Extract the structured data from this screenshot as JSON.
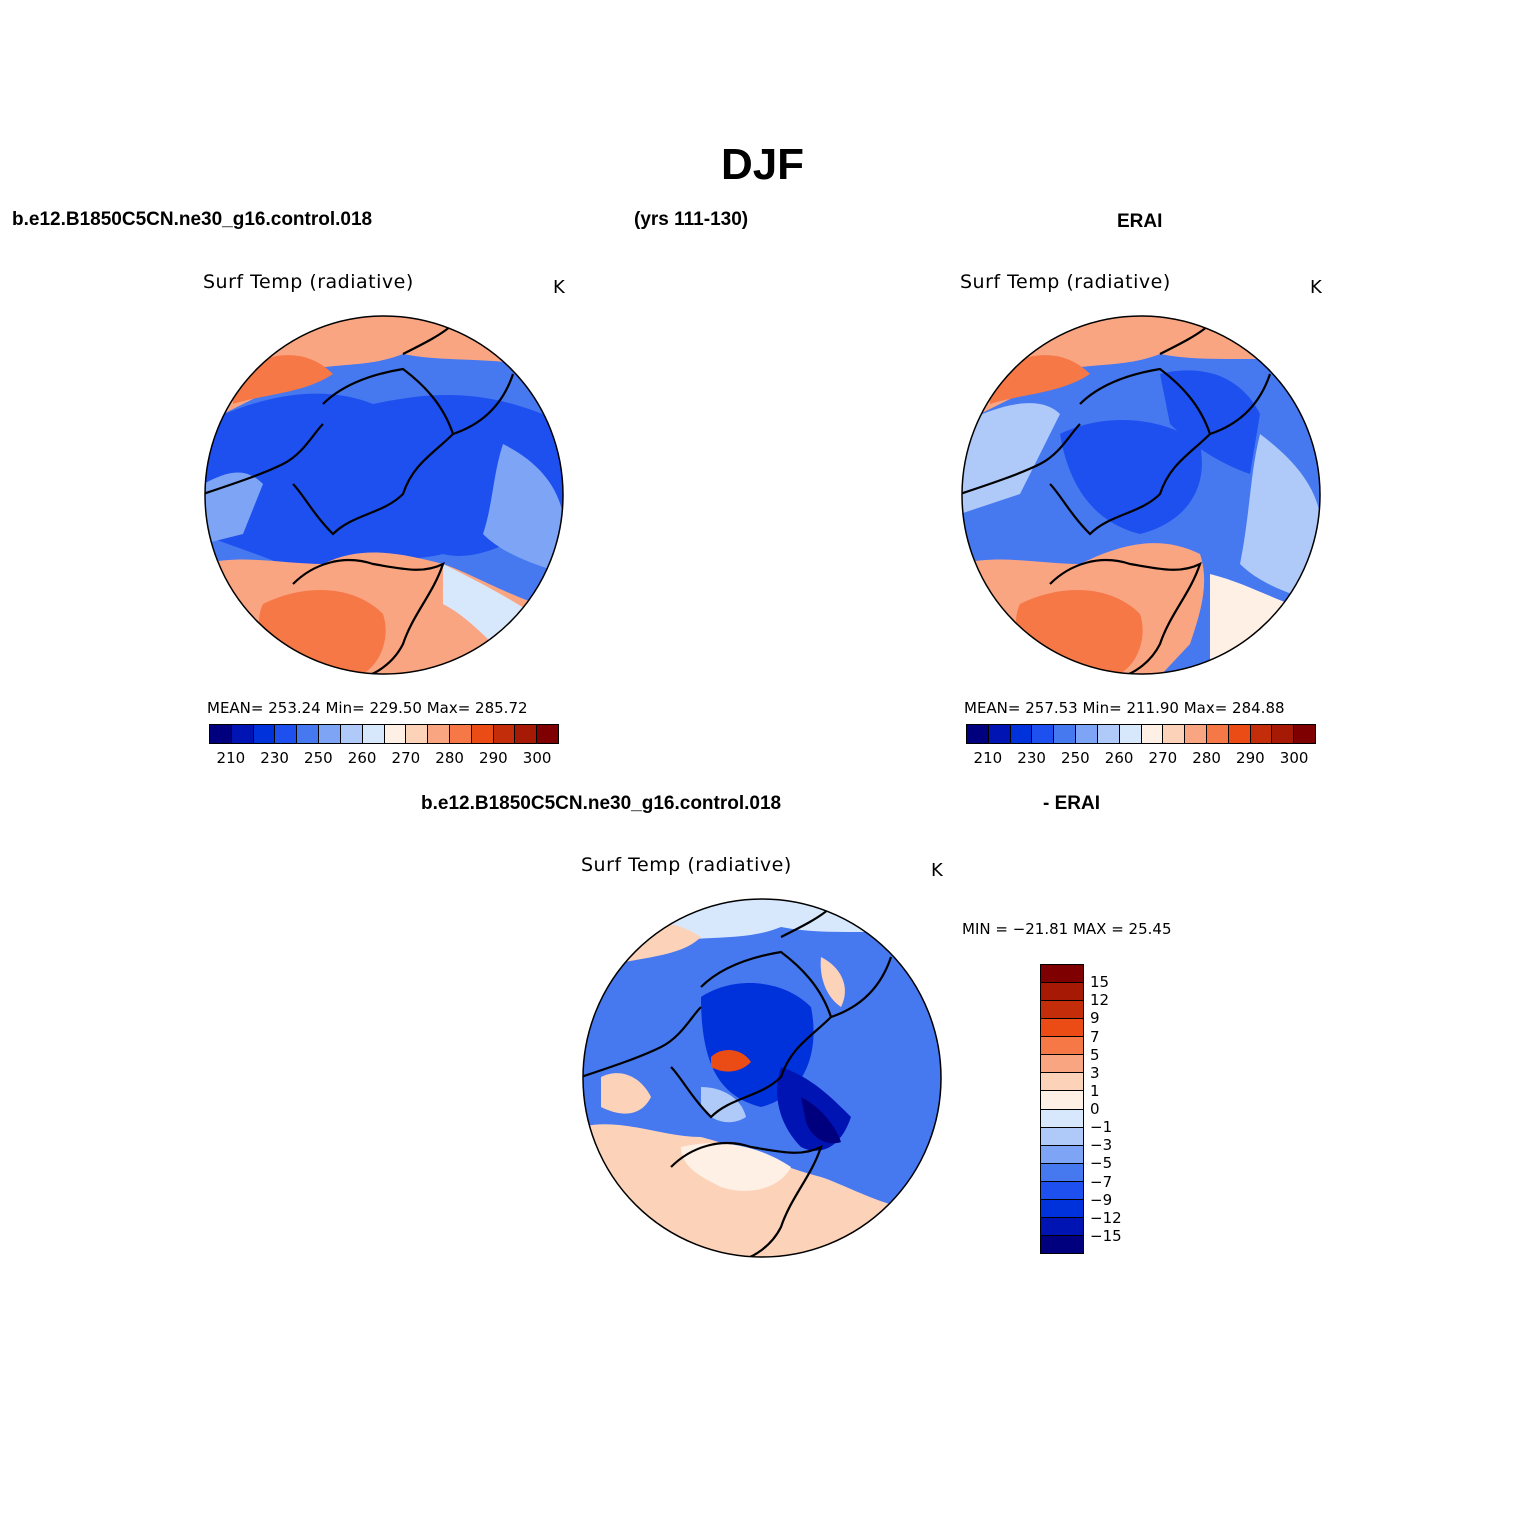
{
  "title": "DJF",
  "top_left": {
    "case": "b.e12.B1850C5CN.ne30_g16.control.018",
    "years": "(yrs 111-130)",
    "variable": "Surf Temp (radiative)",
    "unit": "K",
    "stats": "MEAN= 253.24   Min= 229.50   Max= 285.72"
  },
  "top_right": {
    "case": "ERAI",
    "variable": "Surf Temp (radiative)",
    "unit": "K",
    "stats": "MEAN= 257.53   Min= 211.90   Max= 284.88"
  },
  "bottom": {
    "case": "b.e12.B1850C5CN.ne30_g16.control.018",
    "minus_label": "- ERAI",
    "variable": "Surf Temp (radiative)",
    "unit": "K",
    "stats": "MIN = −21.81  MAX =   25.45"
  },
  "abs_colorbar": {
    "colors": [
      "#00007f",
      "#0014b4",
      "#0032dc",
      "#1e50f0",
      "#4678f0",
      "#7ea5f5",
      "#afcaf8",
      "#d7e8fc",
      "#fff0e6",
      "#fcd2b9",
      "#faa582",
      "#f57846",
      "#eb4b14",
      "#c32d0a",
      "#a51905",
      "#7f0000"
    ],
    "tick_labels": [
      "210",
      "230",
      "250",
      "260",
      "270",
      "280",
      "290",
      "300"
    ]
  },
  "diff_colorbar": {
    "colors": [
      "#7f0000",
      "#a51905",
      "#c32d0a",
      "#eb4b14",
      "#f57846",
      "#faa582",
      "#fcd2b9",
      "#fff0e6",
      "#d7e8fc",
      "#afcaf8",
      "#7ea5f5",
      "#4678f0",
      "#1e50f0",
      "#0032dc",
      "#0014b4",
      "#00007f"
    ],
    "tick_labels": [
      "15",
      "12",
      "9",
      "7",
      "5",
      "3",
      "1",
      "0",
      "−1",
      "−3",
      "−5",
      "−7",
      "−9",
      "−12",
      "−15"
    ]
  }
}
